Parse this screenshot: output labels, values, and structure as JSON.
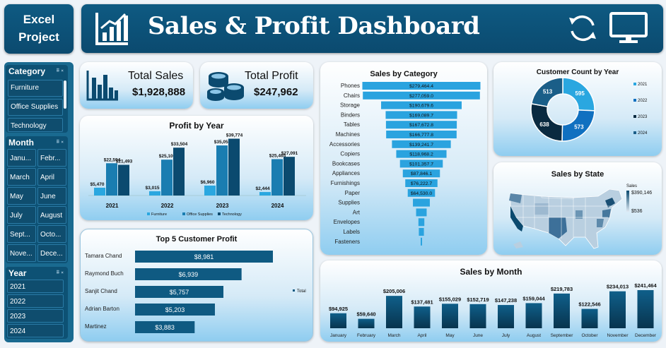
{
  "logo": {
    "line1": "Excel",
    "line2": "Project"
  },
  "header": {
    "title": "Sales & Profit Dashboard",
    "chart_icon": "bar-chart-icon",
    "refresh_icon": "refresh-icon",
    "monitor_icon": "monitor-icon"
  },
  "colors": {
    "navy": "#0b4a6f",
    "teal": "#1a6e99",
    "light_blue": "#2aa7e0",
    "mid_blue": "#1f86c9",
    "dark_bar": "#094766"
  },
  "slicers": {
    "category": {
      "title": "Category",
      "items": [
        "Furniture",
        "Office Supplies",
        "Technology"
      ]
    },
    "month": {
      "title": "Month",
      "items": [
        "Janu...",
        "Febr...",
        "March",
        "April",
        "May",
        "June",
        "July",
        "August",
        "Sept...",
        "Octo...",
        "Nove...",
        "Dece..."
      ]
    },
    "year": {
      "title": "Year",
      "items": [
        "2021",
        "2022",
        "2023",
        "2024"
      ]
    }
  },
  "kpi": {
    "sales": {
      "label": "Total Sales",
      "value": "$1,928,888"
    },
    "profit": {
      "label": "Total Profit",
      "value": "$247,962"
    }
  },
  "profit_by_year": {
    "title": "Profit by Year",
    "legend": [
      "Furniture",
      "Office Supplies",
      "Technology"
    ],
    "chart_data": {
      "type": "bar",
      "categories": [
        "2021",
        "2022",
        "2023",
        "2024"
      ],
      "series": [
        {
          "name": "Furniture",
          "values": [
            5470,
            3015,
            6960,
            2444
          ],
          "labels": [
            "$5,470",
            "$3,015",
            "$6,960",
            "$2,444"
          ]
        },
        {
          "name": "Office Supplies",
          "values": [
            22594,
            25100,
            35053,
            25465
          ],
          "labels": [
            "$22,594",
            "$25,100",
            "$35,053",
            "$25,465"
          ]
        },
        {
          "name": "Technology",
          "values": [
            21493,
            33504,
            39774,
            27091
          ],
          "labels": [
            "$21,493",
            "$33,504",
            "$39,774",
            "$27,091"
          ]
        }
      ]
    }
  },
  "top5": {
    "title": "Top 5 Customer Profit",
    "legend": "Total",
    "chart_data": {
      "type": "bar",
      "categories": [
        "Tamara Chand",
        "Raymond Buch",
        "Sanjit Chand",
        "Adrian Barton",
        "Martinez"
      ],
      "values": [
        8981,
        6939,
        5757,
        5203,
        3883
      ],
      "labels": [
        "$8,981",
        "$6,939",
        "$5,757",
        "$5,203",
        "$3,883"
      ]
    }
  },
  "sales_by_category": {
    "title": "Sales by Category",
    "chart_data": {
      "type": "bar",
      "categories": [
        "Phones",
        "Chairs",
        "Storage",
        "Binders",
        "Tables",
        "Machines",
        "Accessories",
        "Copiers",
        "Bookcases",
        "Appliances",
        "Furnishings",
        "Paper",
        "Supplies",
        "Art",
        "Envelopes",
        "Labels",
        "Fasteners"
      ],
      "values": [
        279464.4,
        277059.0,
        190679.6,
        169089.7,
        167672.8,
        166777.8,
        139241.7,
        118968.2,
        101357.7,
        87846.1,
        76222.7,
        64530.0,
        40000,
        25000,
        14000,
        12000,
        3000
      ],
      "labels": [
        "$279,464.4",
        "$277,059.0",
        "$190,679.6",
        "$169,089.7",
        "$167,672.8",
        "$166,777.8",
        "$139,241.7",
        "$118,968.2",
        "$101,357.7",
        "$87,846.1",
        "$76,222.7",
        "$64,530.0",
        "",
        "",
        "",
        "",
        ""
      ]
    }
  },
  "customer_count": {
    "title": "Customer Count by Year",
    "chart_data": {
      "type": "pie",
      "categories": [
        "2021",
        "2022",
        "2023",
        "2024"
      ],
      "values": [
        595,
        573,
        638,
        513
      ],
      "colors": [
        "#2aa7e0",
        "#1070c0",
        "#0a2a40",
        "#1a5e88"
      ]
    }
  },
  "sales_by_state": {
    "title": "Sales by State",
    "legend_title": "Sales",
    "max": "$390,146",
    "min": "$536"
  },
  "sales_by_month": {
    "title": "Sales by Month",
    "chart_data": {
      "type": "bar",
      "categories": [
        "January",
        "February",
        "March",
        "April",
        "May",
        "June",
        "July",
        "August",
        "September",
        "October",
        "November",
        "December"
      ],
      "values": [
        94925,
        59640,
        205006,
        137481,
        155029,
        152719,
        147238,
        159044,
        219783,
        122546,
        234013,
        241464
      ],
      "labels": [
        "$94,925",
        "$59,640",
        "$205,006",
        "$137,481",
        "$155,029",
        "$152,719",
        "$147,238",
        "$159,044",
        "$219,783",
        "$122,546",
        "$234,013",
        "$241,464"
      ]
    }
  }
}
